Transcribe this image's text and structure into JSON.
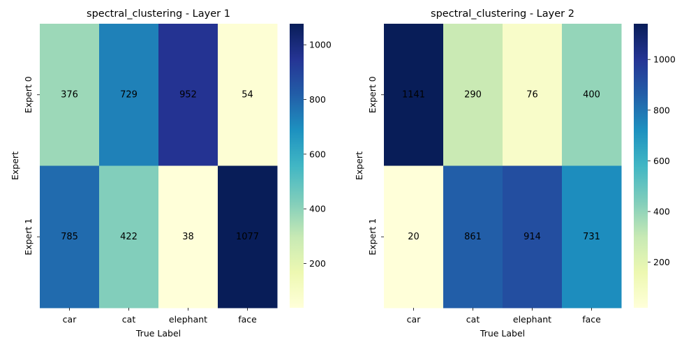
{
  "chart_data": [
    {
      "type": "heatmap",
      "title": "spectral_clustering - Layer 1",
      "xlabel": "True Label",
      "ylabel": "Expert",
      "x_categories": [
        "car",
        "cat",
        "elephant",
        "face"
      ],
      "y_categories": [
        "Expert 0",
        "Expert 1"
      ],
      "values": [
        [
          376,
          729,
          952,
          54
        ],
        [
          785,
          422,
          38,
          1077
        ]
      ],
      "colorbar": {
        "min": 38,
        "max": 1077,
        "ticks": [
          200,
          400,
          600,
          800,
          1000
        ]
      },
      "colormap": "YlGnBu"
    },
    {
      "type": "heatmap",
      "title": "spectral_clustering - Layer 2",
      "xlabel": "True Label",
      "ylabel": "Expert",
      "x_categories": [
        "car",
        "cat",
        "elephant",
        "face"
      ],
      "y_categories": [
        "Expert 0",
        "Expert 1"
      ],
      "values": [
        [
          1141,
          290,
          76,
          400
        ],
        [
          20,
          861,
          914,
          731
        ]
      ],
      "colorbar": {
        "min": 20,
        "max": 1141,
        "ticks": [
          200,
          400,
          600,
          800,
          1000
        ]
      },
      "colormap": "YlGnBu"
    }
  ]
}
